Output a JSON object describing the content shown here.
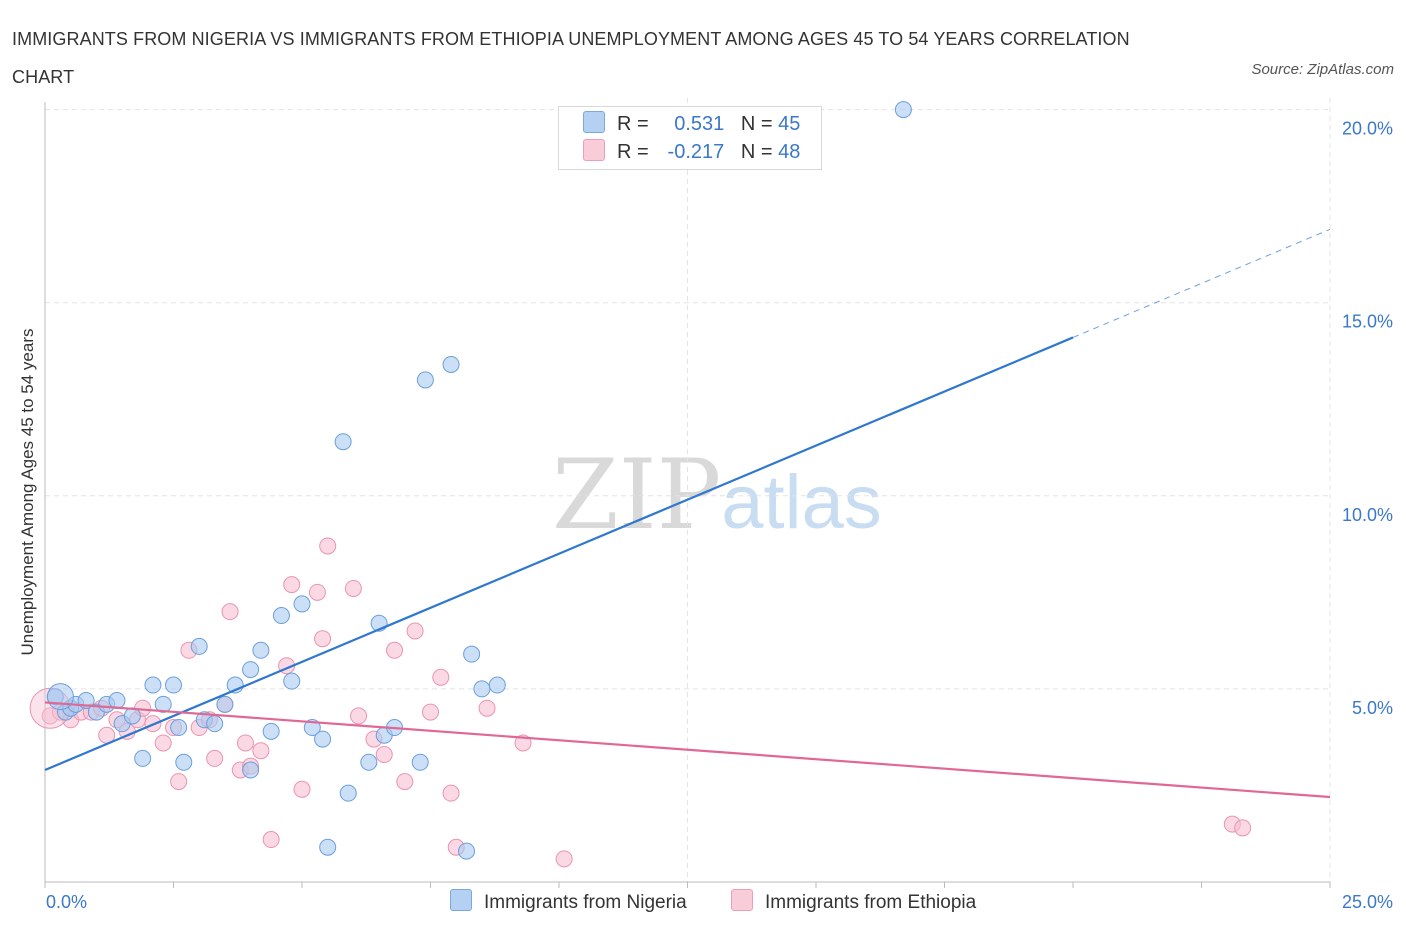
{
  "title": "IMMIGRANTS FROM NIGERIA VS IMMIGRANTS FROM ETHIOPIA UNEMPLOYMENT AMONG AGES 45 TO 54 YEARS CORRELATION CHART",
  "source": "Source: ZipAtlas.com",
  "watermark": {
    "zip": "ZIP",
    "atlas": "atlas"
  },
  "legend": {
    "nigeria": {
      "r_label": "R =",
      "r_value": "0.531",
      "n_label": "N =",
      "n_value": "45"
    },
    "ethiopia": {
      "r_label": "R =",
      "r_value": "-0.217",
      "n_label": "N =",
      "n_value": "48"
    }
  },
  "colors": {
    "nigeria_fill": "#a9c9f0",
    "nigeria_stroke": "#6b9fdc",
    "nigeria_line": "#2f78d0",
    "ethiopia_fill": "#f7c0d2",
    "ethiopia_stroke": "#eb94b2",
    "ethiopia_line": "#e06894",
    "tick_label": "#3a78c9",
    "grid": "#e3e3e3"
  },
  "chart_data": {
    "type": "scatter",
    "title": "IMMIGRANTS FROM NIGERIA VS IMMIGRANTS FROM ETHIOPIA UNEMPLOYMENT AMONG AGES 45 TO 54 YEARS CORRELATION CHART",
    "xlabel": "",
    "ylabel": "Unemployment Among Ages 45 to 54 years",
    "xlim": [
      0,
      25
    ],
    "ylim": [
      0,
      20.3
    ],
    "x_tick_labels": [
      "0.0%",
      "25.0%"
    ],
    "y_ticks": [
      5,
      10,
      15,
      20
    ],
    "y_tick_labels": [
      "5.0%",
      "10.0%",
      "15.0%",
      "20.0%"
    ],
    "grid": true,
    "legend_position": "top-center",
    "series": [
      {
        "name": "Immigrants from Nigeria",
        "points": [
          [
            0.2,
            4.8
          ],
          [
            0.4,
            4.4
          ],
          [
            0.5,
            4.5
          ],
          [
            0.6,
            4.6
          ],
          [
            0.8,
            4.7
          ],
          [
            1.0,
            4.4
          ],
          [
            1.2,
            4.6
          ],
          [
            1.4,
            4.7
          ],
          [
            1.5,
            4.1
          ],
          [
            1.7,
            4.3
          ],
          [
            1.9,
            3.2
          ],
          [
            2.1,
            5.1
          ],
          [
            2.3,
            4.6
          ],
          [
            2.5,
            5.1
          ],
          [
            2.6,
            4.0
          ],
          [
            2.7,
            3.1
          ],
          [
            3.0,
            6.1
          ],
          [
            3.1,
            4.2
          ],
          [
            3.3,
            4.1
          ],
          [
            3.5,
            4.6
          ],
          [
            3.7,
            5.1
          ],
          [
            4.0,
            2.9
          ],
          [
            4.0,
            5.5
          ],
          [
            4.2,
            6.0
          ],
          [
            4.4,
            3.9
          ],
          [
            4.6,
            6.9
          ],
          [
            4.8,
            5.2
          ],
          [
            5.0,
            7.2
          ],
          [
            5.2,
            4.0
          ],
          [
            5.4,
            3.7
          ],
          [
            5.5,
            0.9
          ],
          [
            5.8,
            11.4
          ],
          [
            5.9,
            2.3
          ],
          [
            6.3,
            3.1
          ],
          [
            6.5,
            6.7
          ],
          [
            6.6,
            3.8
          ],
          [
            6.8,
            4.0
          ],
          [
            7.3,
            3.1
          ],
          [
            7.4,
            13.0
          ],
          [
            7.9,
            13.4
          ],
          [
            8.2,
            0.8
          ],
          [
            8.3,
            5.9
          ],
          [
            8.5,
            5.0
          ],
          [
            8.8,
            5.1
          ],
          [
            16.7,
            20.0
          ]
        ],
        "trend": {
          "x": [
            0,
            20
          ],
          "y": [
            2.9,
            14.1
          ],
          "dashed_extension_x": [
            20,
            25
          ],
          "dashed_extension_y": [
            14.1,
            16.9
          ]
        }
      },
      {
        "name": "Immigrants from Ethiopia",
        "points": [
          [
            0.1,
            4.3
          ],
          [
            0.3,
            4.4
          ],
          [
            0.5,
            4.2
          ],
          [
            0.7,
            4.4
          ],
          [
            0.9,
            4.4
          ],
          [
            1.1,
            4.5
          ],
          [
            1.2,
            3.8
          ],
          [
            1.4,
            4.2
          ],
          [
            1.6,
            3.9
          ],
          [
            1.8,
            4.2
          ],
          [
            1.9,
            4.5
          ],
          [
            2.1,
            4.1
          ],
          [
            2.3,
            3.6
          ],
          [
            2.5,
            4.0
          ],
          [
            2.6,
            2.6
          ],
          [
            2.8,
            6.0
          ],
          [
            3.0,
            4.0
          ],
          [
            3.2,
            4.2
          ],
          [
            3.3,
            3.2
          ],
          [
            3.5,
            4.6
          ],
          [
            3.6,
            7.0
          ],
          [
            3.8,
            2.9
          ],
          [
            3.9,
            3.6
          ],
          [
            4.0,
            3.0
          ],
          [
            4.2,
            3.4
          ],
          [
            4.4,
            1.1
          ],
          [
            4.7,
            5.6
          ],
          [
            4.8,
            7.7
          ],
          [
            5.0,
            2.4
          ],
          [
            5.3,
            7.5
          ],
          [
            5.4,
            6.3
          ],
          [
            5.5,
            8.7
          ],
          [
            6.0,
            7.6
          ],
          [
            6.1,
            4.3
          ],
          [
            6.4,
            3.7
          ],
          [
            6.6,
            3.3
          ],
          [
            6.8,
            6.0
          ],
          [
            7.0,
            2.6
          ],
          [
            7.2,
            6.5
          ],
          [
            7.5,
            4.4
          ],
          [
            7.7,
            5.3
          ],
          [
            7.9,
            2.3
          ],
          [
            8.0,
            0.9
          ],
          [
            8.6,
            4.5
          ],
          [
            9.3,
            3.6
          ],
          [
            10.1,
            0.6
          ],
          [
            23.1,
            1.5
          ],
          [
            23.3,
            1.4
          ]
        ],
        "trend": {
          "x": [
            0,
            25
          ],
          "y": [
            4.65,
            2.2
          ]
        }
      }
    ]
  },
  "bottom_legend": {
    "nigeria": "Immigrants from Nigeria",
    "ethiopia": "Immigrants from Ethiopia"
  }
}
